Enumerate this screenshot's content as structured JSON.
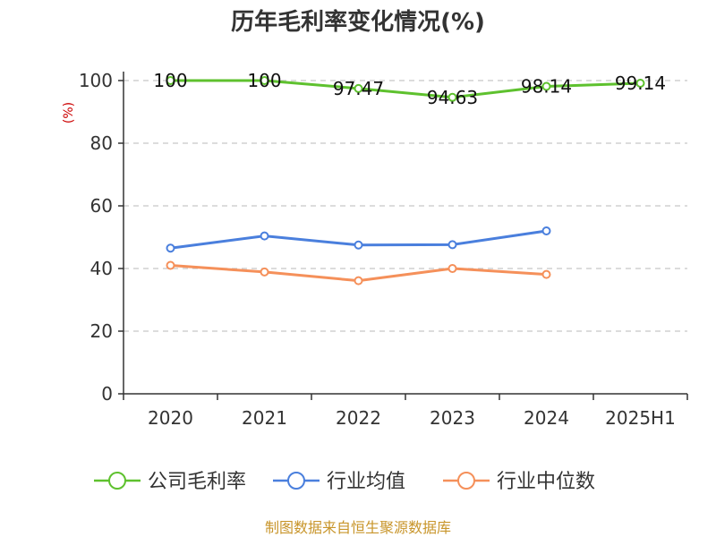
{
  "chart_data": {
    "type": "line",
    "title": "历年毛利率变化情况(%)",
    "ylabel": "(%)",
    "xlabel": "",
    "categories": [
      "2020",
      "2021",
      "2022",
      "2023",
      "2024",
      "2025H1"
    ],
    "ylim": [
      0,
      100
    ],
    "yticks": [
      0,
      20,
      40,
      60,
      80,
      100
    ],
    "grid": true,
    "legend_position": "bottom",
    "series": [
      {
        "name": "公司毛利率",
        "color": "#5ec12e",
        "values": [
          100,
          100,
          97.47,
          94.63,
          98.14,
          99.14
        ],
        "labels": [
          "100",
          "100",
          "97.47",
          "94.63",
          "98.14",
          "99.14"
        ]
      },
      {
        "name": "行业均值",
        "color": "#4a7fdd",
        "values": [
          46.5,
          50.4,
          47.5,
          47.6,
          52.0,
          null
        ]
      },
      {
        "name": "行业中位数",
        "color": "#f5905a",
        "values": [
          41.0,
          38.9,
          36.1,
          40.0,
          38.1,
          null
        ]
      }
    ]
  },
  "source": "制图数据来自恒生聚源数据库"
}
